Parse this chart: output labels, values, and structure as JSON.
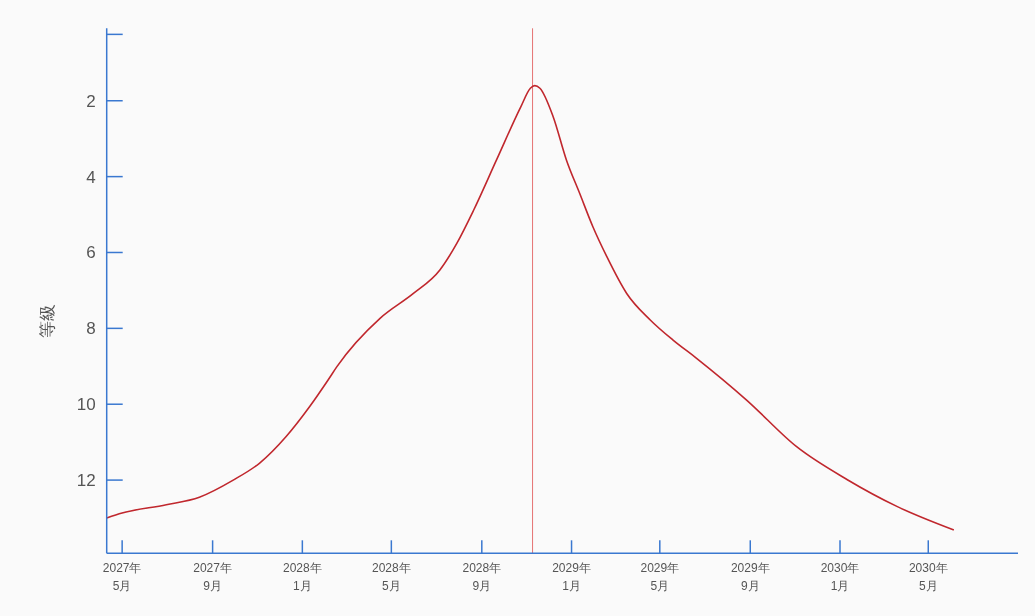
{
  "chart_data": {
    "type": "line",
    "ylabel": "等級",
    "x": [
      "2027-04-10",
      "2027-05-01",
      "2027-06-30",
      "2027-08-14",
      "2027-09-29",
      "2027-11-04",
      "2027-12-10",
      "2028-01-11",
      "2028-02-05",
      "2028-02-17",
      "2028-04-16",
      "2028-05-31",
      "2028-07-06",
      "2028-07-29",
      "2028-08-21",
      "2028-09-21",
      "2028-10-24",
      "2028-11-06",
      "2028-11-12",
      "2028-11-19",
      "2028-12-07",
      "2028-12-25",
      "2029-01-12",
      "2029-01-30",
      "2029-02-18",
      "2029-03-17",
      "2029-04-18",
      "2029-05-19",
      "2029-06-20",
      "2029-08-27",
      "2029-11-03",
      "2030-01-11",
      "2030-03-20",
      "2030-06-04"
    ],
    "series": [
      {
        "color": "#c0272d",
        "values": [
          13.0,
          12.87,
          12.65,
          12.45,
          12.0,
          11.55,
          10.85,
          10.06,
          9.36,
          9.01,
          7.73,
          7.08,
          6.46,
          5.76,
          4.88,
          3.56,
          2.16,
          1.67,
          1.6,
          1.67,
          2.42,
          3.56,
          4.44,
          5.32,
          6.11,
          7.08,
          7.78,
          8.31,
          8.79,
          9.89,
          11.12,
          11.99,
          12.7,
          13.31
        ]
      }
    ],
    "xlim": [
      "2027-04-10",
      "2030-08-31"
    ],
    "xticks": [
      {
        "value": "2027-05-01",
        "label": "2027年\n5月"
      },
      {
        "value": "2027-09-01",
        "label": "2027年\n9月"
      },
      {
        "value": "2028-01-01",
        "label": "2028年\n1月"
      },
      {
        "value": "2028-05-01",
        "label": "2028年\n5月"
      },
      {
        "value": "2028-09-01",
        "label": "2028年\n9月"
      },
      {
        "value": "2029-01-01",
        "label": "2029年\n1月"
      },
      {
        "value": "2029-05-01",
        "label": "2029年\n5月"
      },
      {
        "value": "2029-09-01",
        "label": "2029年\n9月"
      },
      {
        "value": "2030-01-01",
        "label": "2030年\n1月"
      },
      {
        "value": "2030-05-01",
        "label": "2030年\n5月"
      }
    ],
    "ylim": [
      13.93,
      0.09
    ],
    "yticks": [
      {
        "value": 0.25,
        "label": null
      },
      2,
      4,
      6,
      8,
      10,
      12
    ],
    "ref_lines": [
      {
        "axis": "x",
        "value": "2028-11-09",
        "color": "#e57373"
      }
    ]
  }
}
